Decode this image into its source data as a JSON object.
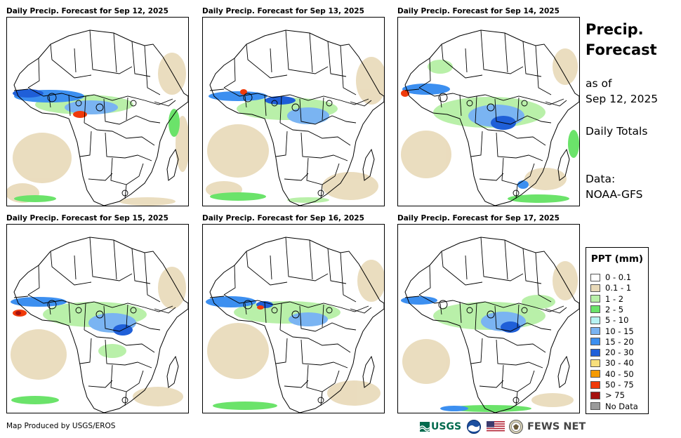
{
  "panels": [
    {
      "title": "Daily Precip. Forecast for Sep 12, 2025"
    },
    {
      "title": "Daily Precip. Forecast for Sep 13, 2025"
    },
    {
      "title": "Daily Precip. Forecast for Sep 14, 2025"
    },
    {
      "title": "Daily Precip. Forecast for Sep 15, 2025"
    },
    {
      "title": "Daily Precip. Forecast for Sep 16, 2025"
    },
    {
      "title": "Daily Precip. Forecast for Sep 17, 2025"
    }
  ],
  "side": {
    "title_line1": "Precip.",
    "title_line2": "Forecast",
    "asof_line1": "as of",
    "asof_line2": "Sep 12, 2025",
    "totals": "Daily Totals",
    "data_line1": "Data:",
    "data_line2": "NOAA-GFS"
  },
  "legend": {
    "title": "PPT (mm)",
    "items": [
      {
        "label": "0 - 0.1",
        "color": "#ffffff"
      },
      {
        "label": "0.1 - 1",
        "color": "#e8d9b8"
      },
      {
        "label": "1 - 2",
        "color": "#b9f0a9"
      },
      {
        "label": "2 - 5",
        "color": "#6be36a"
      },
      {
        "label": "5 - 10",
        "color": "#b7f3f2"
      },
      {
        "label": "10 - 15",
        "color": "#7ab4f2"
      },
      {
        "label": "15 - 20",
        "color": "#3c8ff0"
      },
      {
        "label": "20 - 30",
        "color": "#1f5fd8"
      },
      {
        "label": "30 - 40",
        "color": "#f7df7c"
      },
      {
        "label": "40 - 50",
        "color": "#f59a00"
      },
      {
        "label": "50 - 75",
        "color": "#f03a0a"
      },
      {
        "label": "> 75",
        "color": "#a5120f"
      },
      {
        "label": "No Data",
        "color": "#9b9b9b"
      }
    ]
  },
  "footer": {
    "credit": "Map Produced by USGS/EROS",
    "usgs_label": "USGS",
    "fews_label": "FEWS NET",
    "icons": [
      "usgs-logo",
      "noaa-logo",
      "us-flag-icon",
      "state-department-seal",
      "fews-net-logo"
    ]
  }
}
